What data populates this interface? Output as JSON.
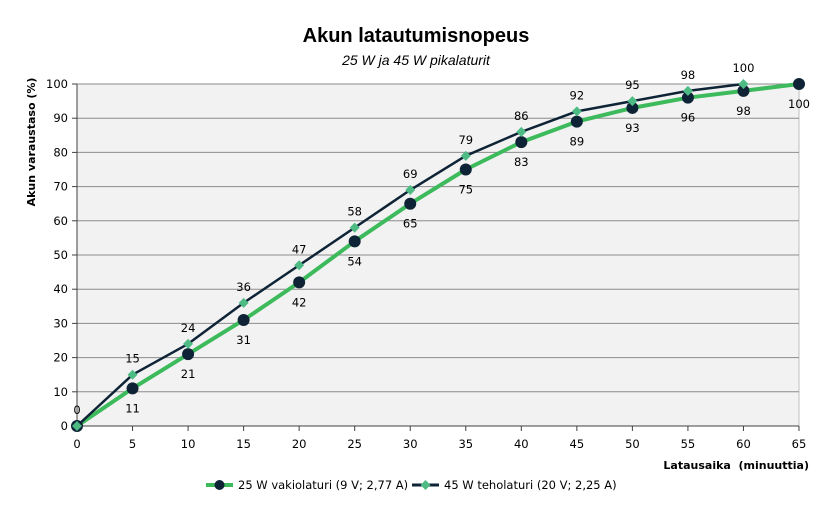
{
  "chart_data": {
    "type": "line",
    "title": "Akun latautumisnopeus",
    "subtitle": "25 W ja 45 W pikalaturit",
    "xlabel": "Latausaika  (minuuttia)",
    "ylabel": "Akun varaustaso  (%)",
    "x": [
      0,
      5,
      10,
      15,
      20,
      25,
      30,
      35,
      40,
      45,
      50,
      55,
      60,
      65
    ],
    "xlim": [
      0,
      65
    ],
    "ylim": [
      0,
      100
    ],
    "xticks": [
      0,
      5,
      10,
      15,
      20,
      25,
      30,
      35,
      40,
      45,
      50,
      55,
      60,
      65
    ],
    "yticks": [
      0,
      10,
      20,
      30,
      40,
      50,
      60,
      70,
      80,
      90,
      100
    ],
    "grid": "horizontal",
    "legend_position": "bottom",
    "series": [
      {
        "name": "25 W vakiolaturi (9 V; 2,77 A)",
        "x": [
          0,
          5,
          10,
          15,
          20,
          25,
          30,
          35,
          40,
          45,
          50,
          55,
          60,
          65
        ],
        "values": [
          0,
          11,
          21,
          31,
          42,
          54,
          65,
          75,
          83,
          89,
          93,
          96,
          98,
          100
        ],
        "line_color": "#3cba5c",
        "marker_color": "#0e2436",
        "marker": "circle"
      },
      {
        "name": "45 W teholaturi (20 V; 2,25 A)",
        "x": [
          0,
          5,
          10,
          15,
          20,
          25,
          30,
          35,
          40,
          45,
          50,
          55,
          60
        ],
        "values": [
          0,
          15,
          24,
          36,
          47,
          58,
          69,
          79,
          86,
          92,
          95,
          98,
          100
        ],
        "line_color": "#0e2436",
        "marker_color": "#4dbb83",
        "marker": "diamond"
      }
    ]
  }
}
